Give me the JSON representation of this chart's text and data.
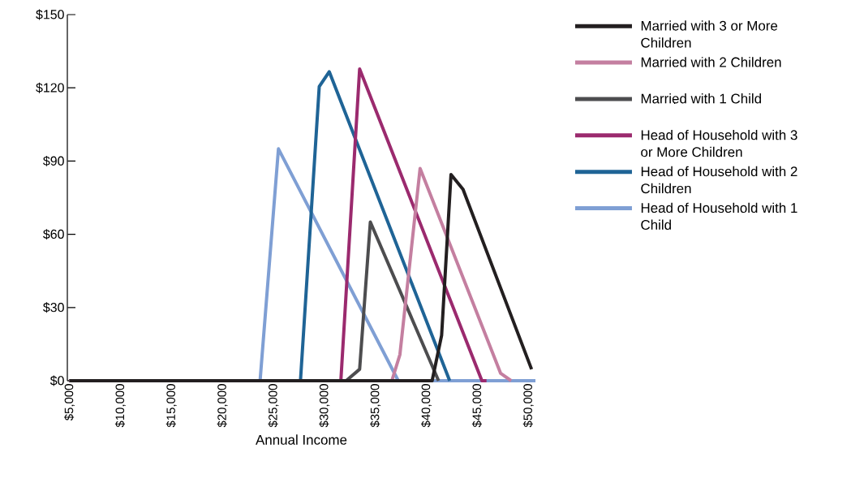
{
  "chart_data": {
    "type": "line",
    "xlabel": "Annual Income",
    "xlim": [
      4800,
      50700
    ],
    "xticks": [
      {
        "value": 5000,
        "label": "$5,000"
      },
      {
        "value": 10000,
        "label": "$10,000"
      },
      {
        "value": 15000,
        "label": "$15,000"
      },
      {
        "value": 20000,
        "label": "$20,000"
      },
      {
        "value": 25000,
        "label": "$25,000"
      },
      {
        "value": 30000,
        "label": "$30,000"
      },
      {
        "value": 35000,
        "label": "$35,000"
      },
      {
        "value": 40000,
        "label": "$40,000"
      },
      {
        "value": 45000,
        "label": "$45,000"
      },
      {
        "value": 50000,
        "label": "$50,000"
      }
    ],
    "ylim": [
      0,
      150
    ],
    "yticks": [
      {
        "value": 0,
        "label": "$0"
      },
      {
        "value": 30,
        "label": "$30"
      },
      {
        "value": 60,
        "label": "$60"
      },
      {
        "value": 90,
        "label": "$90"
      },
      {
        "value": 120,
        "label": "$120"
      },
      {
        "value": 150,
        "label": "$150"
      }
    ],
    "legend": "right",
    "grid": false,
    "marker": "none",
    "line_style": "solid",
    "series": [
      {
        "name": "Married with 3 or More Children",
        "color": "#231f20",
        "x": [
          5000,
          40570,
          41500,
          42420,
          43600,
          50320
        ],
        "values": [
          0,
          0,
          18.6,
          84.5,
          78.4,
          4.7
        ]
      },
      {
        "name": "Married with 2 Children",
        "color": "#c47fa0",
        "x": [
          5000,
          36620,
          37410,
          39390,
          47290,
          48320
        ],
        "values": [
          0,
          0,
          10.7,
          87,
          3,
          0
        ]
      },
      {
        "name": "Married with 1 Child",
        "color": "#4d4d4f",
        "x": [
          5000,
          32140,
          33460,
          34510,
          41200
        ],
        "values": [
          0,
          0,
          4.7,
          65,
          0
        ]
      },
      {
        "name": "Head of Household with 3 or More Children",
        "color": "#9b2a6e",
        "x": [
          5000,
          31620,
          33460,
          45450,
          45900
        ],
        "values": [
          0,
          0,
          127.7,
          0,
          0
        ]
      },
      {
        "name": "Head of Household with 2 Children",
        "color": "#1f6496",
        "x": [
          5000,
          27660,
          29500,
          30480,
          42290
        ],
        "values": [
          0,
          0,
          120.5,
          126.6,
          0
        ]
      },
      {
        "name": "Head of Household with 1 Child",
        "color": "#7f9fd4",
        "x": [
          5000,
          23700,
          25500,
          37250,
          50700
        ],
        "values": [
          0,
          0,
          95,
          0,
          0
        ]
      }
    ]
  }
}
